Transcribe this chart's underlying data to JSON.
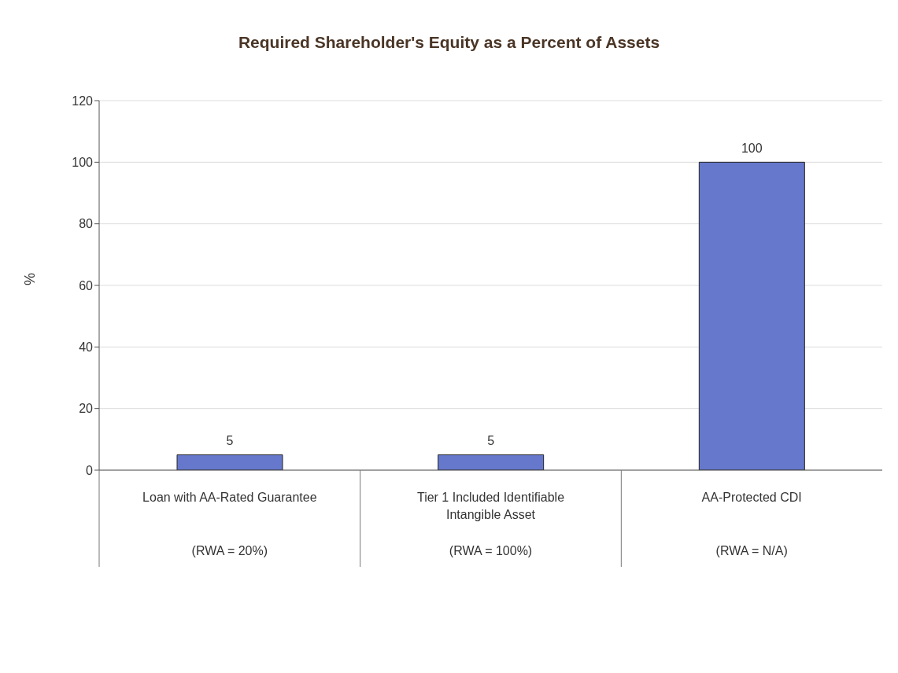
{
  "chart_data": {
    "type": "bar",
    "title": "Required Shareholder's Equity as a Percent of Assets",
    "ylabel": "%",
    "categories": [
      "Loan with AA-Rated Guarantee\n(RWA = 20%)",
      "Tier 1 Included Identifiable Intangible Asset\n(RWA = 100%)",
      "AA-Protected CDI\n(RWA = N/A)"
    ],
    "values": [
      5,
      5,
      100
    ],
    "color": "#6678cc",
    "ylim": [
      0,
      120
    ],
    "yticks": [
      0,
      20,
      40,
      60,
      80,
      100,
      120
    ],
    "grid": "y",
    "data_labels": true,
    "legend": false
  }
}
